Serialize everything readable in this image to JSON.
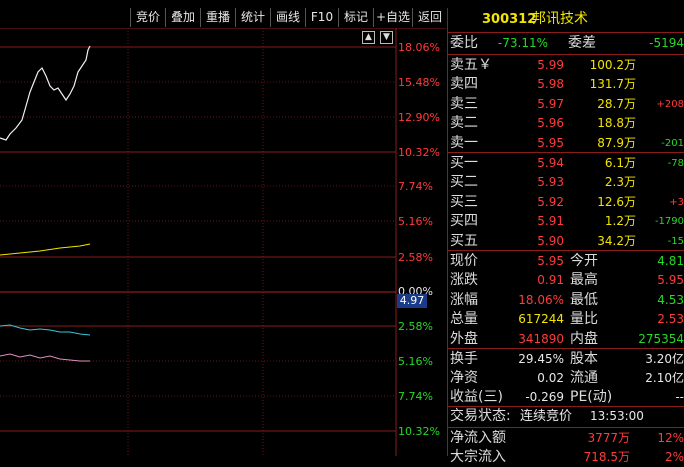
{
  "toolbar": {
    "buttons": [
      "竞价",
      "叠加",
      "重播",
      "统计",
      "画线",
      "F10",
      "标记",
      "+自选",
      "返回"
    ]
  },
  "stock": {
    "code": "300312",
    "name": "邦讯技术"
  },
  "chart": {
    "upper_pcts": [
      "18.06%",
      "15.48%",
      "12.90%",
      "10.32%",
      "7.74%",
      "5.16%",
      "2.58%"
    ],
    "zero_pct": "0.00%",
    "lower_pcts": [
      "2.58%",
      "5.16%",
      "7.74%",
      "10.32%"
    ],
    "price_tag": "4.97"
  },
  "ratio": {
    "wb_label": "委比",
    "wb_value": "-73.11%",
    "wc_label": "委差",
    "wc_value": "-5194"
  },
  "asks": [
    {
      "label": "卖五￥",
      "price": "5.99",
      "vol": "100.2万",
      "chg": ""
    },
    {
      "label": "卖四",
      "price": "5.98",
      "vol": "131.7万",
      "chg": ""
    },
    {
      "label": "卖三",
      "price": "5.97",
      "vol": "28.7万",
      "chg": "+208"
    },
    {
      "label": "卖二",
      "price": "5.96",
      "vol": "18.8万",
      "chg": ""
    },
    {
      "label": "卖一",
      "price": "5.95",
      "vol": "87.9万",
      "chg": "-201"
    }
  ],
  "bids": [
    {
      "label": "买一",
      "price": "5.94",
      "vol": "6.1万",
      "chg": "-78"
    },
    {
      "label": "买二",
      "price": "5.93",
      "vol": "2.3万",
      "chg": ""
    },
    {
      "label": "买三",
      "price": "5.92",
      "vol": "12.6万",
      "chg": "+3"
    },
    {
      "label": "买四",
      "price": "5.91",
      "vol": "1.2万",
      "chg": "-1790"
    },
    {
      "label": "买五",
      "price": "5.90",
      "vol": "34.2万",
      "chg": "-15"
    }
  ],
  "quote": [
    {
      "l1": "现价",
      "v1": "5.95",
      "c1": "red",
      "l2": "今开",
      "v2": "4.81",
      "c2": "green"
    },
    {
      "l1": "涨跌",
      "v1": "0.91",
      "c1": "red",
      "l2": "最高",
      "v2": "5.95",
      "c2": "red"
    },
    {
      "l1": "涨幅",
      "v1": "18.06%",
      "c1": "red",
      "l2": "最低",
      "v2": "4.53",
      "c2": "green"
    },
    {
      "l1": "总量",
      "v1": "617244",
      "c1": "yellow",
      "l2": "量比",
      "v2": "2.53",
      "c2": "red"
    },
    {
      "l1": "外盘",
      "v1": "341890",
      "c1": "red",
      "l2": "内盘",
      "v2": "275354",
      "c2": "green"
    }
  ],
  "fund": [
    {
      "l1": "换手",
      "v1": "29.45%",
      "l2": "股本",
      "v2": "3.20亿"
    },
    {
      "l1": "净资",
      "v1": "0.02",
      "l2": "流通",
      "v2": "2.10亿"
    },
    {
      "l1": "收益(三)",
      "v1": "-0.269",
      "l2": "PE(动)",
      "v2": "--"
    }
  ],
  "status": {
    "label": "交易状态:",
    "state": "连续竞价",
    "time": "13:53:00"
  },
  "flow": [
    {
      "label": "净流入额",
      "value": "3777万",
      "pct": "12%"
    },
    {
      "label": "大宗流入",
      "value": "718.5万",
      "pct": "2%"
    }
  ],
  "colors": {
    "red": "#ff3b3b",
    "green": "#26d926",
    "yellow": "#f2e600",
    "grid": "#8a1c1c"
  }
}
